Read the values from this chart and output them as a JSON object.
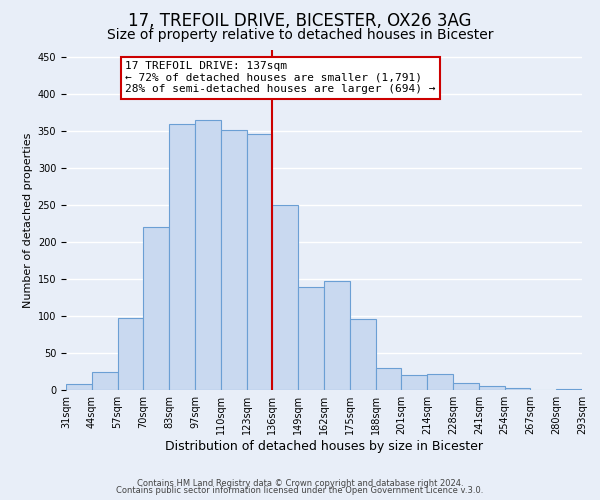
{
  "title": "17, TREFOIL DRIVE, BICESTER, OX26 3AG",
  "subtitle": "Size of property relative to detached houses in Bicester",
  "xlabel": "Distribution of detached houses by size in Bicester",
  "ylabel": "Number of detached properties",
  "bin_labels": [
    "31sqm",
    "44sqm",
    "57sqm",
    "70sqm",
    "83sqm",
    "97sqm",
    "110sqm",
    "123sqm",
    "136sqm",
    "149sqm",
    "162sqm",
    "175sqm",
    "188sqm",
    "201sqm",
    "214sqm",
    "228sqm",
    "241sqm",
    "254sqm",
    "267sqm",
    "280sqm",
    "293sqm"
  ],
  "bar_heights": [
    8,
    25,
    98,
    220,
    360,
    365,
    352,
    347,
    250,
    140,
    148,
    96,
    30,
    20,
    21,
    10,
    5,
    3,
    0,
    2
  ],
  "bar_color": "#c9d9f0",
  "bar_edge_color": "#6b9fd4",
  "vline_color": "#cc0000",
  "annotation_title": "17 TREFOIL DRIVE: 137sqm",
  "annotation_line1": "← 72% of detached houses are smaller (1,791)",
  "annotation_line2": "28% of semi-detached houses are larger (694) →",
  "annotation_box_color": "#ffffff",
  "annotation_box_edge": "#cc0000",
  "ylim": [
    0,
    460
  ],
  "yticks": [
    0,
    50,
    100,
    150,
    200,
    250,
    300,
    350,
    400,
    450
  ],
  "footer1": "Contains HM Land Registry data © Crown copyright and database right 2024.",
  "footer2": "Contains public sector information licensed under the Open Government Licence v.3.0.",
  "bg_color": "#e8eef8",
  "grid_color": "#ffffff",
  "title_fontsize": 12,
  "subtitle_fontsize": 10,
  "xlabel_fontsize": 9,
  "ylabel_fontsize": 8,
  "tick_fontsize": 7,
  "footer_fontsize": 6,
  "annot_fontsize": 8
}
